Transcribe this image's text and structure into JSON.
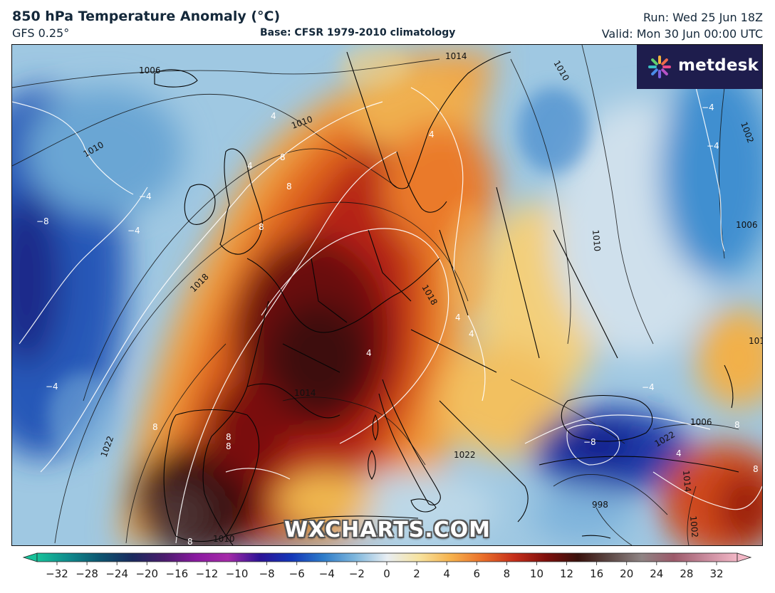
{
  "header": {
    "title": "850 hPa Temperature Anomaly (°C)",
    "model": "GFS 0.25°",
    "base": "Base: CFSR 1979-2010 climatology",
    "run": "Run: Wed 25 Jun 18Z",
    "valid": "Valid: Mon 30 Jun 00:00 UTC"
  },
  "logo": {
    "text": "metdesk",
    "icon": "metdesk-flower-icon"
  },
  "watermark": "WXCHARTS.COM",
  "colorbar": {
    "ticks": [
      "−32",
      "−28",
      "−24",
      "−20",
      "−16",
      "−12",
      "−10",
      "−8",
      "−6",
      "−4",
      "−2",
      "0",
      "2",
      "4",
      "6",
      "8",
      "10",
      "12",
      "16",
      "20",
      "24",
      "28",
      "32"
    ],
    "colors": [
      "#17c29a",
      "#0f8a8c",
      "#0d5470",
      "#1a2a5e",
      "#4b1d6e",
      "#8a1aa0",
      "#a52aa8",
      "#2c1396",
      "#1337b8",
      "#2e7cc9",
      "#7fb7dd",
      "#e8eef3",
      "#f7e3a0",
      "#f6b24d",
      "#ea6f2a",
      "#c52e1a",
      "#7e0f0c",
      "#3a120d",
      "#5e4a47",
      "#8f8484",
      "#9c5a6a",
      "#c88a9c",
      "#f2b7c6"
    ]
  },
  "map": {
    "isobar_labels": [
      "1006",
      "1014",
      "1010",
      "1002",
      "1010",
      "1010",
      "1006",
      "1018",
      "1022",
      "1014",
      "1018",
      "1006",
      "998",
      "1010",
      "1022",
      "1014",
      "1010",
      "1002",
      "1022",
      "1010"
    ],
    "anomaly_labels": [
      "4",
      "4",
      "8",
      "8",
      "8",
      "−4",
      "−8",
      "−4",
      "−4",
      "4",
      "4",
      "4",
      "4",
      "8",
      "8",
      "8",
      "−4",
      "−8",
      "8",
      "4",
      "8",
      "8",
      "−4",
      "−4"
    ]
  }
}
